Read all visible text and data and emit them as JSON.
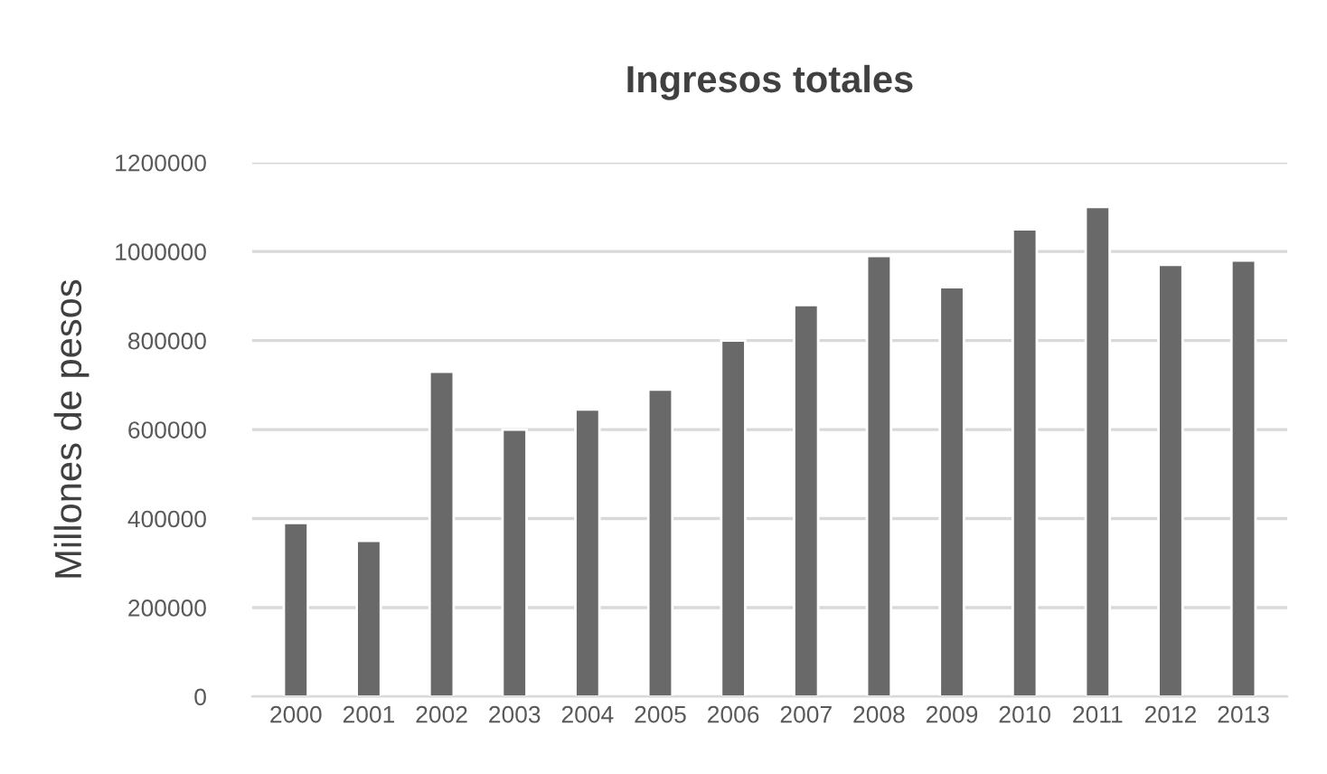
{
  "chart_data": {
    "type": "bar",
    "title": "Ingresos totales",
    "ylabel": "Millones de pesos",
    "categories": [
      "2000",
      "2001",
      "2002",
      "2003",
      "2004",
      "2005",
      "2006",
      "2007",
      "2008",
      "2009",
      "2010",
      "2011",
      "2012",
      "2013"
    ],
    "values": [
      390000,
      350000,
      730000,
      600000,
      645000,
      690000,
      800000,
      880000,
      990000,
      920000,
      1050000,
      1100000,
      970000,
      980000
    ],
    "color": "#696969",
    "ylim": [
      0,
      1200000
    ],
    "yticks": [
      0,
      200000,
      400000,
      600000,
      800000,
      1000000,
      1200000
    ],
    "grid": "y"
  }
}
